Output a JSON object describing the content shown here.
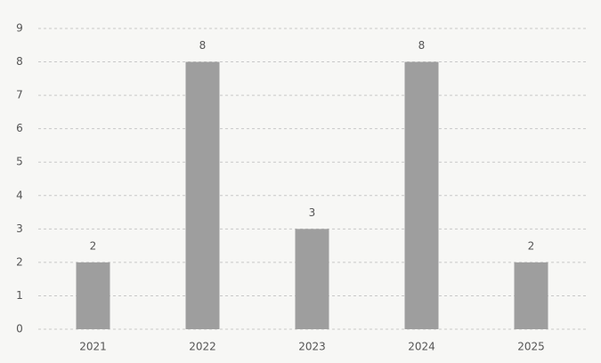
{
  "chart_data": {
    "type": "bar",
    "categories": [
      "2021",
      "2022",
      "2023",
      "2024",
      "2025"
    ],
    "values": [
      2,
      8,
      3,
      8,
      2
    ],
    "color": "#9e9e9e",
    "ylim": [
      0,
      9
    ],
    "yticks": [
      0,
      1,
      2,
      3,
      4,
      5,
      6,
      7,
      8,
      9
    ],
    "grid": true
  }
}
